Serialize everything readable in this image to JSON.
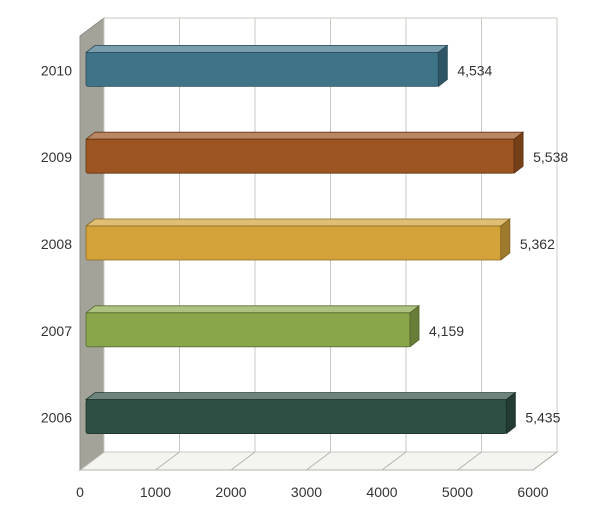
{
  "chart_data": {
    "type": "bar",
    "orientation": "horizontal",
    "style": "3d",
    "title": "",
    "xlabel": "",
    "ylabel": "",
    "xlim": [
      0,
      6000
    ],
    "x_ticks": [
      "0",
      "1000",
      "2000",
      "3000",
      "4000",
      "5000",
      "6000"
    ],
    "grid": true,
    "legend": "none",
    "categories": [
      "2010",
      "2009",
      "2008",
      "2007",
      "2006"
    ],
    "values": [
      4534,
      5538,
      5362,
      4159,
      5435
    ],
    "value_labels": [
      "4,534",
      "5,538",
      "5,362",
      "4,159",
      "5,435"
    ],
    "colors": [
      "#3f7388",
      "#9c5420",
      "#d3a33a",
      "#8aa64a",
      "#2e4f44"
    ]
  }
}
